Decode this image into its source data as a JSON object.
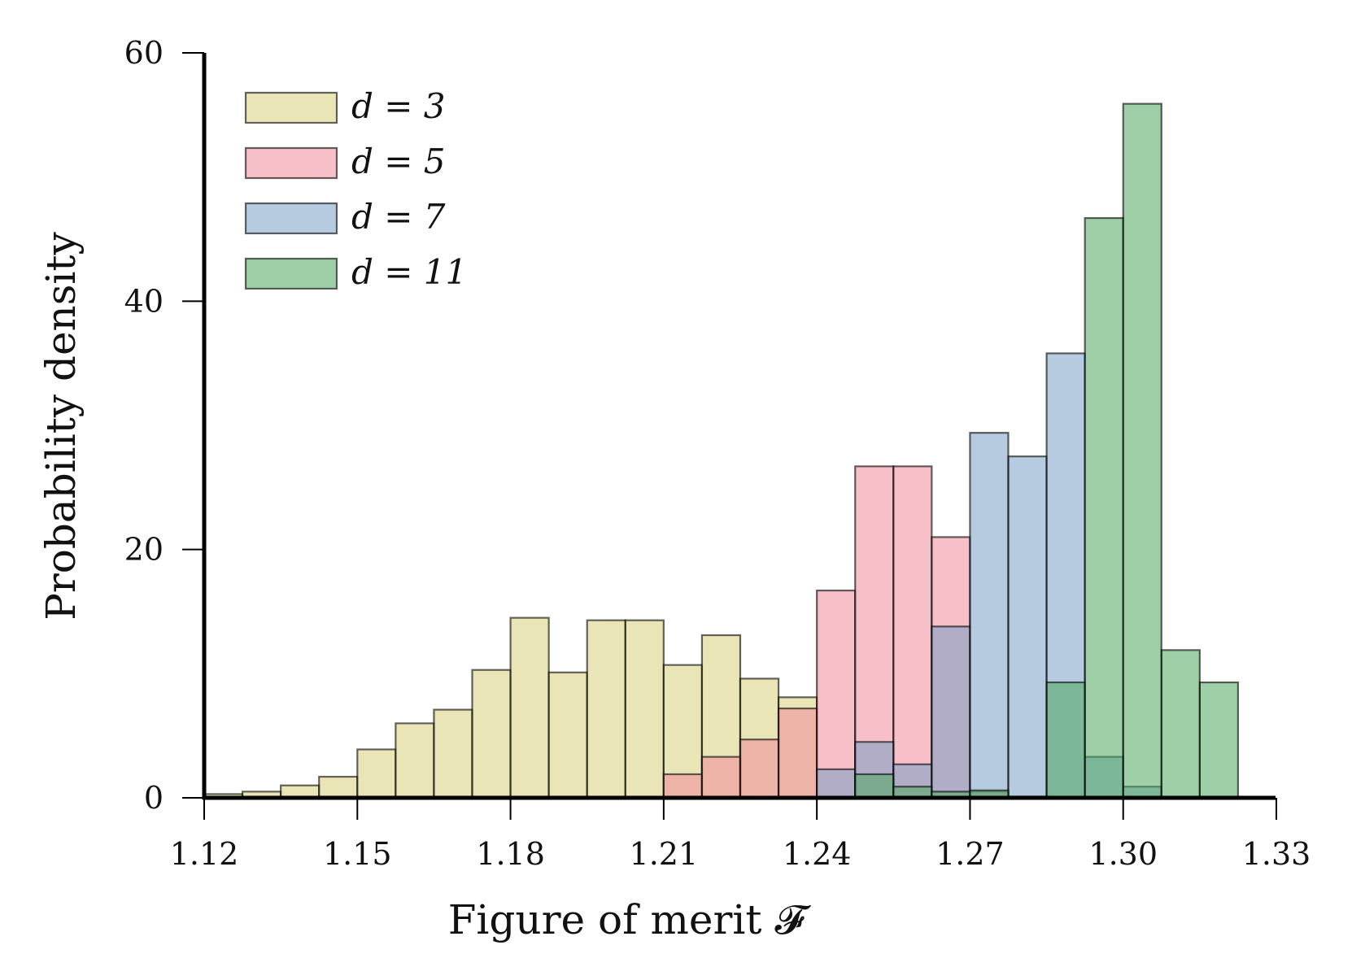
{
  "chart_data": {
    "type": "bar",
    "subtype": "overlapping-histogram",
    "title": "",
    "xlabel": "Figure of merit 𝓕",
    "ylabel": "Probability density",
    "xlim": [
      1.12,
      1.33
    ],
    "ylim": [
      0,
      60
    ],
    "xticks": [
      "1.12",
      "1.15",
      "1.18",
      "1.21",
      "1.24",
      "1.27",
      "1.30",
      "1.33"
    ],
    "yticks": [
      "0",
      "20",
      "40",
      "60"
    ],
    "grid": false,
    "legend_position": "top-left",
    "bin_width": 0.0075,
    "series": [
      {
        "name": "d = 3",
        "color": "#d9cf7a",
        "bins": [
          [
            1.12,
            0.3
          ],
          [
            1.1275,
            0.5
          ],
          [
            1.135,
            1.0
          ],
          [
            1.1425,
            1.7
          ],
          [
            1.15,
            3.9
          ],
          [
            1.1575,
            6.0
          ],
          [
            1.165,
            7.1
          ],
          [
            1.1725,
            10.3
          ],
          [
            1.18,
            14.5
          ],
          [
            1.1875,
            10.1
          ],
          [
            1.195,
            14.3
          ],
          [
            1.2025,
            14.3
          ],
          [
            1.21,
            10.7
          ],
          [
            1.2175,
            13.1
          ],
          [
            1.225,
            9.6
          ],
          [
            1.2325,
            8.1
          ]
        ]
      },
      {
        "name": "d = 5",
        "color": "#f08a9a",
        "bins": [
          [
            1.21,
            1.9
          ],
          [
            1.2175,
            3.3
          ],
          [
            1.225,
            4.7
          ],
          [
            1.2325,
            7.2
          ],
          [
            1.24,
            16.7
          ],
          [
            1.2475,
            26.7
          ],
          [
            1.255,
            26.7
          ],
          [
            1.2625,
            21.0
          ],
          [
            1.27,
            0.5
          ]
        ]
      },
      {
        "name": "d = 7",
        "color": "#7a9ec6",
        "bins": [
          [
            1.24,
            2.3
          ],
          [
            1.2475,
            4.5
          ],
          [
            1.255,
            2.7
          ],
          [
            1.2625,
            13.8
          ],
          [
            1.27,
            29.4
          ],
          [
            1.2775,
            27.5
          ],
          [
            1.285,
            35.8
          ],
          [
            1.2925,
            3.3
          ],
          [
            1.3,
            0.9
          ]
        ]
      },
      {
        "name": "d = 11",
        "color": "#4fa85e",
        "bins": [
          [
            1.2475,
            1.9
          ],
          [
            1.255,
            0.9
          ],
          [
            1.2625,
            0.5
          ],
          [
            1.27,
            0.6
          ],
          [
            1.2775,
            0.1
          ],
          [
            1.285,
            9.3
          ],
          [
            1.2925,
            46.7
          ],
          [
            1.3,
            55.9
          ],
          [
            1.3075,
            11.9
          ],
          [
            1.315,
            9.3
          ]
        ]
      }
    ]
  }
}
